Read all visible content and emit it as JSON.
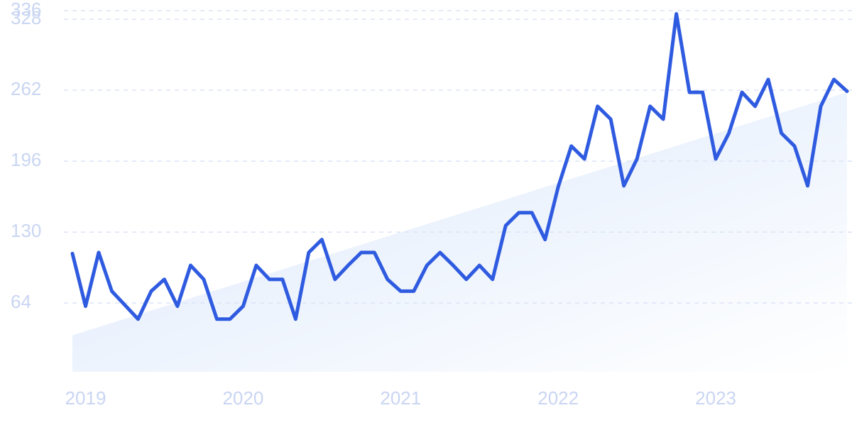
{
  "chart_data": {
    "type": "line",
    "categories": [
      null,
      "2019",
      null,
      null,
      null,
      null,
      null,
      null,
      null,
      null,
      null,
      null,
      null,
      "2020",
      null,
      null,
      null,
      null,
      null,
      null,
      null,
      null,
      null,
      null,
      null,
      "2021",
      null,
      null,
      null,
      null,
      null,
      null,
      null,
      null,
      null,
      null,
      null,
      "2022",
      null,
      null,
      null,
      null,
      null,
      null,
      null,
      null,
      null,
      null,
      null,
      "2023",
      null,
      null,
      null,
      null,
      null,
      null,
      null,
      null,
      null,
      null
    ],
    "values": [
      110,
      61,
      111,
      75,
      62,
      49,
      75,
      86,
      61,
      99,
      86,
      49,
      49,
      61,
      99,
      86,
      86,
      49,
      111,
      123,
      86,
      99,
      111,
      111,
      86,
      75,
      75,
      99,
      111,
      99,
      86,
      99,
      86,
      136,
      148,
      148,
      123,
      172,
      210,
      198,
      247,
      235,
      173,
      198,
      247,
      235,
      333,
      260,
      260,
      198,
      222,
      260,
      247,
      272,
      222,
      210,
      173,
      247,
      272,
      261
    ],
    "color": "#2f5be0",
    "trend": [
      34,
      260
    ],
    "trend_color": "#dfeafb",
    "ylim": [
      0,
      336
    ],
    "yticks": [
      64,
      130,
      196,
      262,
      328,
      336
    ],
    "grid": true
  }
}
